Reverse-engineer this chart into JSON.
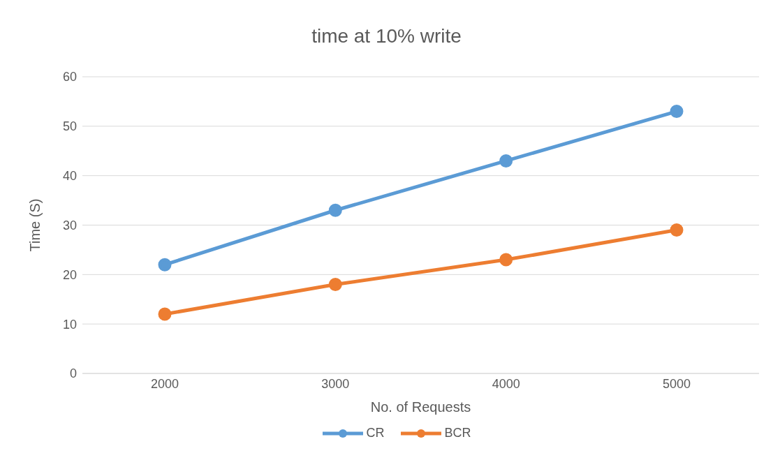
{
  "chart_data": {
    "type": "line",
    "title": "time at 10% write",
    "xlabel": "No. of Requests",
    "ylabel": "Time (S)",
    "categories": [
      "2000",
      "3000",
      "4000",
      "5000"
    ],
    "series": [
      {
        "name": "CR",
        "color": "#5b9bd5",
        "values": [
          22,
          33,
          43,
          53
        ]
      },
      {
        "name": "BCR",
        "color": "#ed7d31",
        "values": [
          12,
          18,
          23,
          29
        ]
      }
    ],
    "ylim": [
      0,
      60
    ],
    "yticks": [
      0,
      10,
      20,
      30,
      40,
      50,
      60
    ],
    "grid": "y",
    "legend": "bottom",
    "marker": "circle",
    "line_style": "solid"
  }
}
